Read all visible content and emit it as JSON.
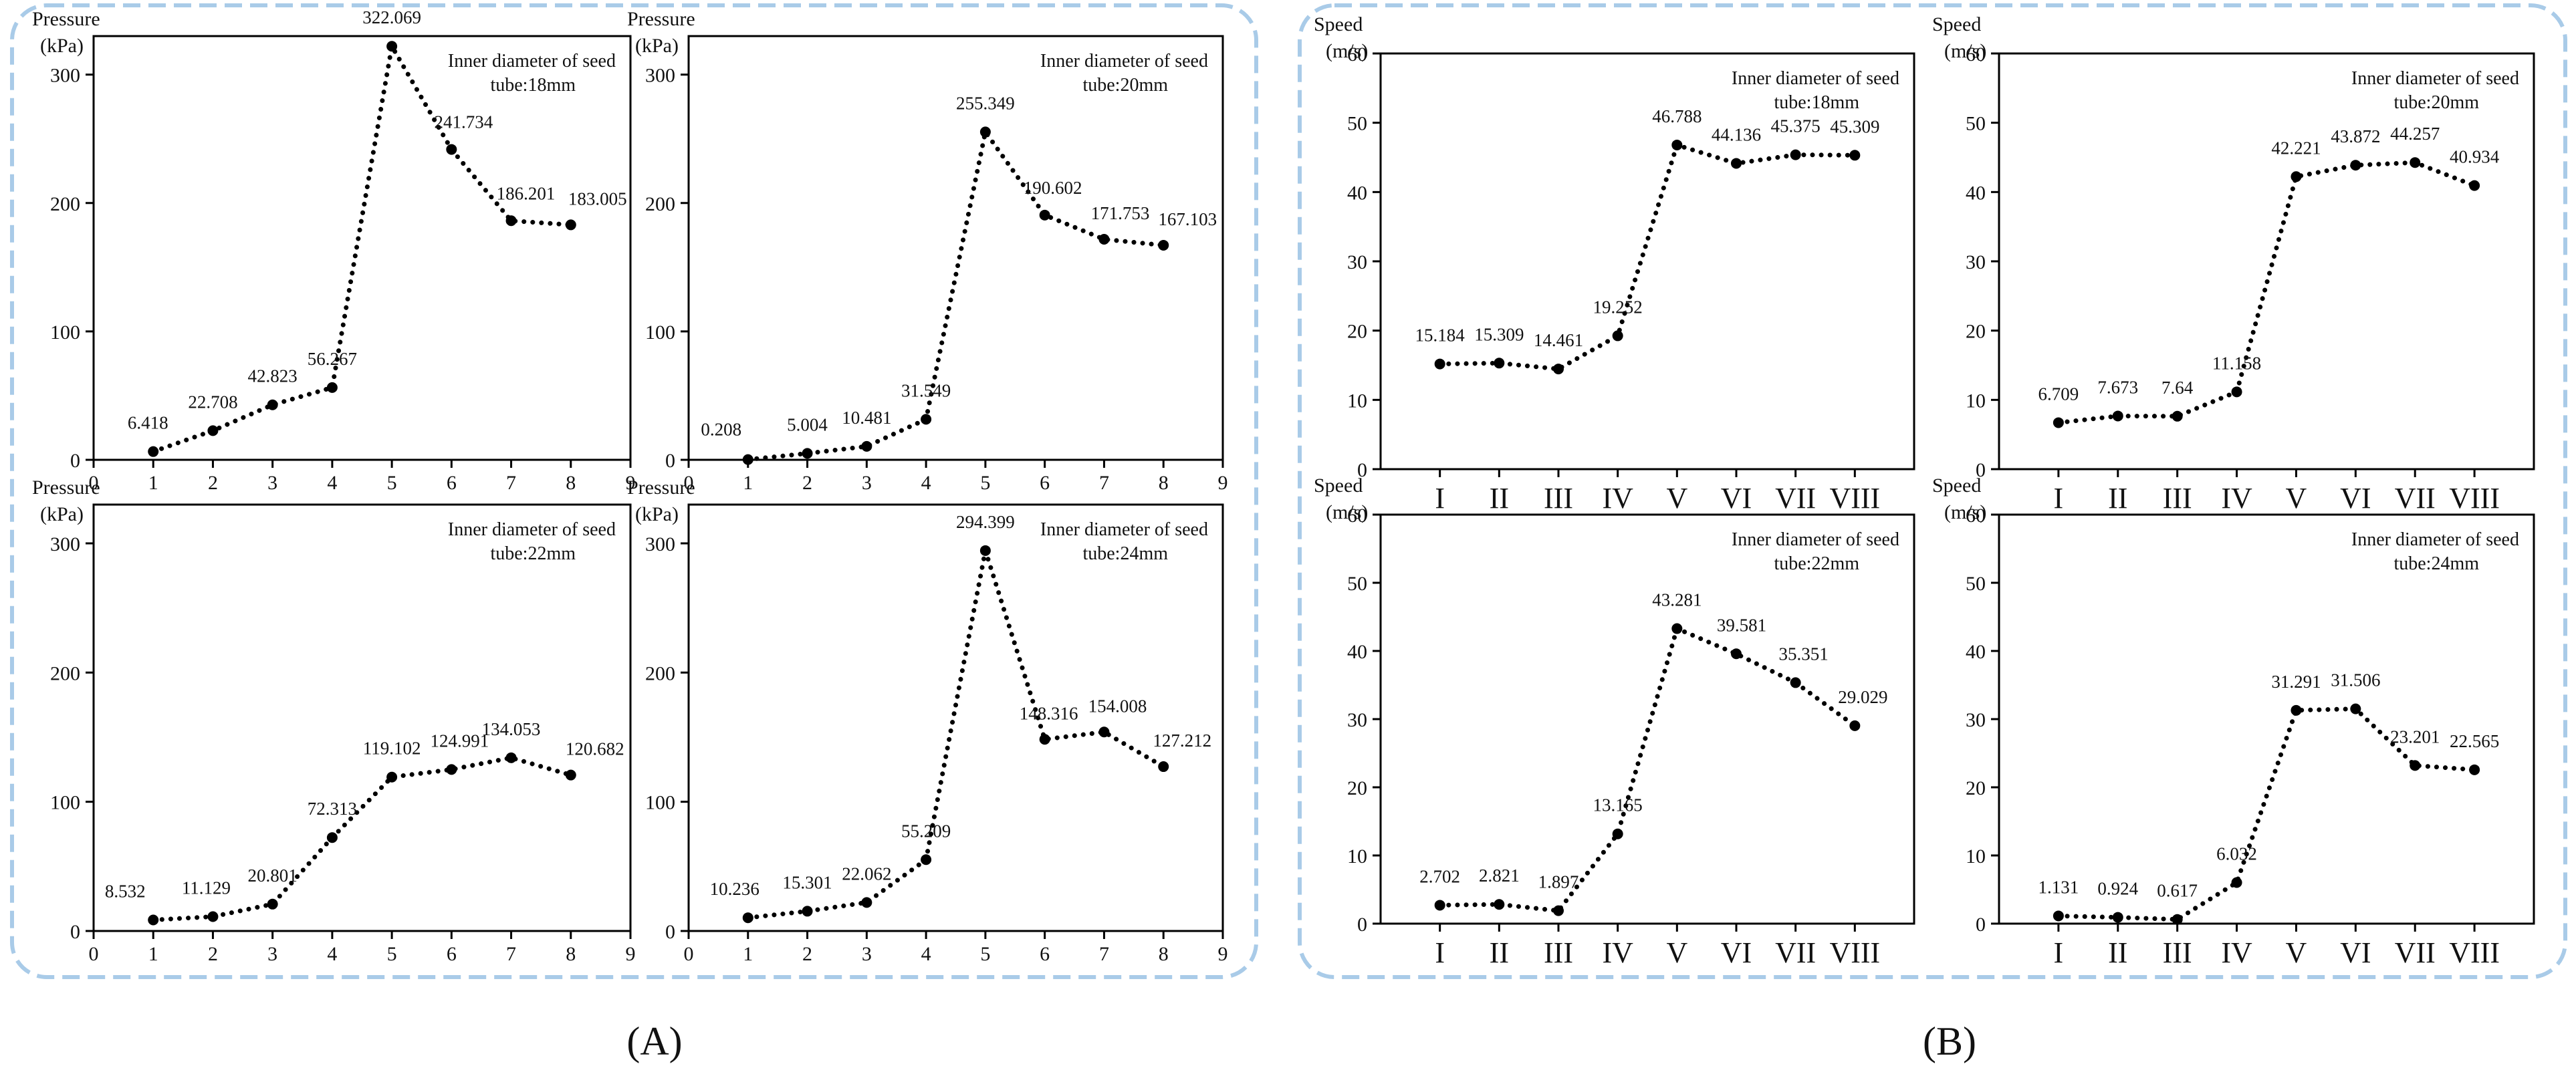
{
  "figure": {
    "panel_labels": [
      "(A)",
      "(B)"
    ]
  },
  "chart_data": [
    {
      "group": "A",
      "type": "line",
      "title": "Inner diameter  of seed tube:18mm",
      "title_lines": [
        "Inner diameter  of seed",
        "tube:18mm"
      ],
      "ylabel": "Pressure",
      "yunit": "(kPa)",
      "x": [
        1,
        2,
        3,
        4,
        5,
        6,
        7,
        8
      ],
      "values": [
        6.418,
        22.708,
        42.823,
        56.267,
        322.069,
        241.734,
        186.201,
        183.005
      ],
      "labels": [
        "6.418",
        "22.708",
        "42.823",
        "56.267",
        "322.069",
        "241.734",
        "186.201",
        "183.005"
      ],
      "xlim": [
        0,
        9
      ],
      "ylim": [
        0,
        330
      ],
      "xticks": [
        "0",
        "1",
        "2",
        "3",
        "4",
        "5",
        "6",
        "7",
        "8",
        "9"
      ],
      "yticks": [
        "0",
        "100",
        "200",
        "300"
      ]
    },
    {
      "group": "A",
      "type": "line",
      "title": "Inner diameter  of seed tube:20mm",
      "title_lines": [
        "Inner diameter  of seed",
        "tube:20mm"
      ],
      "ylabel": "Pressure",
      "yunit": "(kPa)",
      "x": [
        1,
        2,
        3,
        4,
        5,
        6,
        7,
        8
      ],
      "values": [
        0.208,
        5.004,
        10.481,
        31.549,
        255.349,
        190.602,
        171.753,
        167.103
      ],
      "labels": [
        "0.208",
        "5.004",
        "10.481",
        "31.549",
        "255.349",
        "190.602",
        "171.753",
        "167.103"
      ],
      "xlim": [
        0,
        9
      ],
      "ylim": [
        0,
        330
      ],
      "xticks": [
        "0",
        "1",
        "2",
        "3",
        "4",
        "5",
        "6",
        "7",
        "8",
        "9"
      ],
      "yticks": [
        "0",
        "100",
        "200",
        "300"
      ]
    },
    {
      "group": "A",
      "type": "line",
      "title": "Inner diameter  of seed tube:22mm",
      "title_lines": [
        "Inner diameter  of seed",
        "tube:22mm"
      ],
      "ylabel": "Pressure",
      "yunit": "(kPa)",
      "x": [
        1,
        2,
        3,
        4,
        5,
        6,
        7,
        8
      ],
      "values": [
        8.532,
        11.129,
        20.801,
        72.313,
        119.102,
        124.991,
        134.053,
        120.682
      ],
      "labels": [
        "8.532",
        "11.129",
        "20.801",
        "72.313",
        "119.102",
        "124.991",
        "134.053",
        "120.682"
      ],
      "xlim": [
        0,
        9
      ],
      "ylim": [
        0,
        330
      ],
      "xticks": [
        "0",
        "1",
        "2",
        "3",
        "4",
        "5",
        "6",
        "7",
        "8",
        "9"
      ],
      "yticks": [
        "0",
        "100",
        "200",
        "300"
      ]
    },
    {
      "group": "A",
      "type": "line",
      "title": "Inner diameter  of seed tube:24mm",
      "title_lines": [
        "Inner diameter  of seed",
        "tube:24mm"
      ],
      "ylabel": "Pressure",
      "yunit": "(kPa)",
      "x": [
        1,
        2,
        3,
        4,
        5,
        6,
        7,
        8
      ],
      "values": [
        10.236,
        15.301,
        22.062,
        55.209,
        294.399,
        148.316,
        154.008,
        127.212
      ],
      "labels": [
        "10.236",
        "15.301",
        "22.062",
        "55.209",
        "294.399",
        "148.316",
        "154.008",
        "127.212"
      ],
      "xlim": [
        0,
        9
      ],
      "ylim": [
        0,
        330
      ],
      "xticks": [
        "0",
        "1",
        "2",
        "3",
        "4",
        "5",
        "6",
        "7",
        "8",
        "9"
      ],
      "yticks": [
        "0",
        "100",
        "200",
        "300"
      ]
    },
    {
      "group": "B",
      "type": "line",
      "title": "Inner diameter of seed tube:18mm",
      "title_lines": [
        "Inner diameter of seed",
        "tube:18mm"
      ],
      "ylabel": "Speed",
      "yunit": "(m/s)",
      "categories": [
        "I",
        "II",
        "III",
        "IV",
        "V",
        "VI",
        "VII",
        "VIII"
      ],
      "values": [
        15.184,
        15.309,
        14.461,
        19.252,
        46.788,
        44.136,
        45.375,
        45.309
      ],
      "labels": [
        "15.184",
        "15.309",
        "14.461",
        "19.252",
        "46.788",
        "44.136",
        "45.375",
        "45.309"
      ],
      "ylim": [
        0,
        60
      ],
      "yticks": [
        "0",
        "10",
        "20",
        "30",
        "40",
        "50",
        "60"
      ]
    },
    {
      "group": "B",
      "type": "line",
      "title": "Inner diameter of seed tube:20mm",
      "title_lines": [
        "Inner diameter of seed",
        "tube:20mm"
      ],
      "ylabel": "Speed",
      "yunit": "(m/s)",
      "categories": [
        "I",
        "II",
        "III",
        "IV",
        "V",
        "VI",
        "VII",
        "VIII"
      ],
      "values": [
        6.709,
        7.673,
        7.64,
        11.158,
        42.221,
        43.872,
        44.257,
        40.934
      ],
      "labels": [
        "6.709",
        "7.673",
        "7.64",
        "11.158",
        "42.221",
        "43.872",
        "44.257",
        "40.934"
      ],
      "ylim": [
        0,
        60
      ],
      "yticks": [
        "0",
        "10",
        "20",
        "30",
        "40",
        "50",
        "60"
      ]
    },
    {
      "group": "B",
      "type": "line",
      "title": "Inner diameter of seed tube:22mm",
      "title_lines": [
        "Inner diameter of seed",
        "tube:22mm"
      ],
      "ylabel": "Speed",
      "yunit": "(m/s)",
      "categories": [
        "I",
        "II",
        "III",
        "IV",
        "V",
        "VI",
        "VII",
        "VIII"
      ],
      "values": [
        2.702,
        2.821,
        1.897,
        13.165,
        43.281,
        39.581,
        35.351,
        29.029
      ],
      "labels": [
        "2.702",
        "2.821",
        "1.897",
        "13.165",
        "43.281",
        "39.581",
        "35.351",
        "29.029"
      ],
      "ylim": [
        0,
        60
      ],
      "yticks": [
        "0",
        "10",
        "20",
        "30",
        "40",
        "50",
        "60"
      ]
    },
    {
      "group": "B",
      "type": "line",
      "title": "Inner diameter of seed tube:24mm",
      "title_lines": [
        "Inner diameter of seed",
        "tube:24mm"
      ],
      "ylabel": "Speed",
      "yunit": "(m/s)",
      "categories": [
        "I",
        "II",
        "III",
        "IV",
        "V",
        "VI",
        "VII",
        "VIII"
      ],
      "values": [
        1.131,
        0.924,
        0.617,
        6.032,
        31.291,
        31.506,
        23.201,
        22.565
      ],
      "labels": [
        "1.131",
        "0.924",
        "0.617",
        "6.032",
        "31.291",
        "31.506",
        "23.201",
        "22.565"
      ],
      "ylim": [
        0,
        60
      ],
      "yticks": [
        "0",
        "10",
        "20",
        "30",
        "40",
        "50",
        "60"
      ]
    }
  ]
}
